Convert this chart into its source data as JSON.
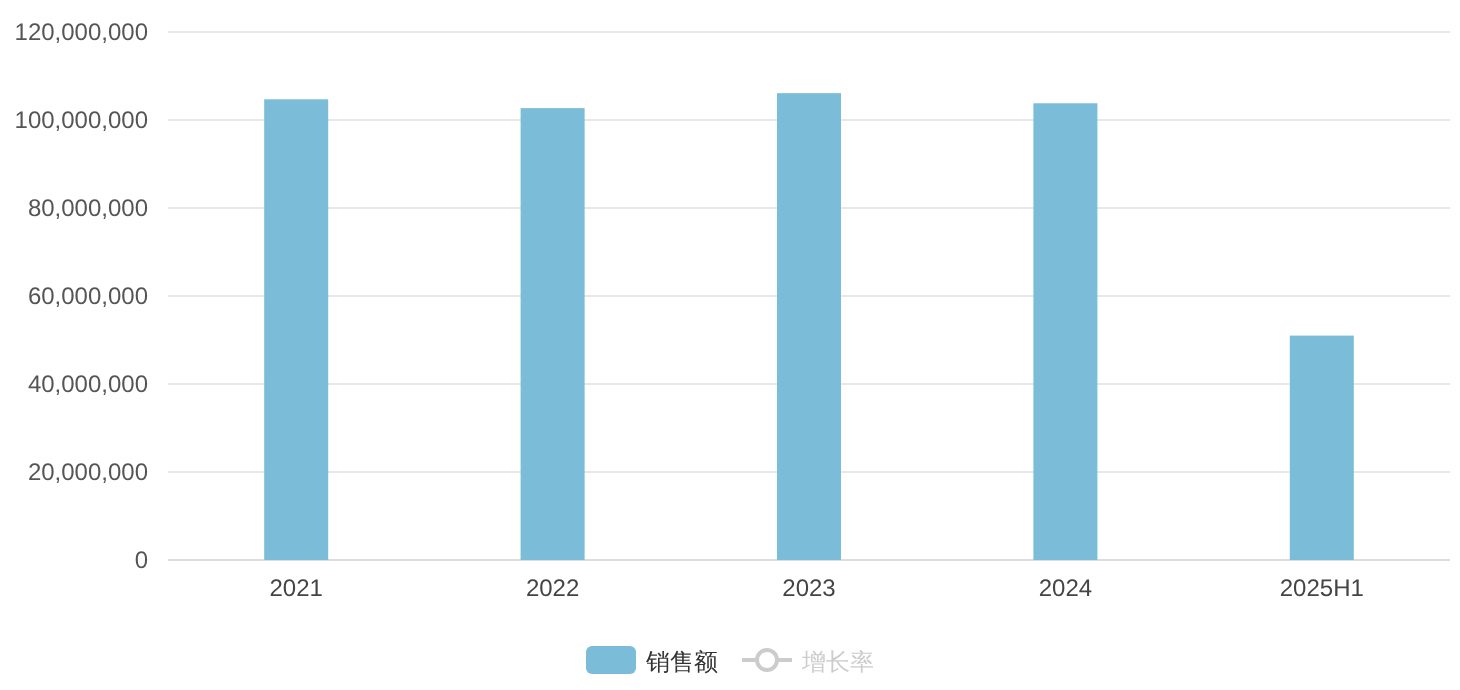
{
  "chart_data": {
    "type": "bar",
    "categories": [
      "2021",
      "2022",
      "2023",
      "2024",
      "2025H1"
    ],
    "series": [
      {
        "name": "销售额",
        "color": "#7bbcd9",
        "values": [
          104700000,
          102700000,
          106100000,
          103800000,
          51000000
        ]
      },
      {
        "name": "增长率",
        "type": "line",
        "color": "#cccccc",
        "marker": "circle",
        "values": [
          null,
          null,
          null,
          null,
          null
        ]
      }
    ],
    "ylim": [
      0,
      120000000
    ],
    "yticks": [
      0,
      {
        "value": 20000000,
        "label": "20,000,000"
      },
      {
        "value": 40000000,
        "label": "40,000,000"
      },
      {
        "value": 60000000,
        "label": "60,000,000"
      },
      {
        "value": 80000000,
        "label": "80,000,000"
      },
      {
        "value": 100000000,
        "label": "100,000,000"
      },
      {
        "value": 120000000,
        "label": "120,000,000"
      }
    ],
    "grid": "y",
    "legend": "bottom"
  }
}
